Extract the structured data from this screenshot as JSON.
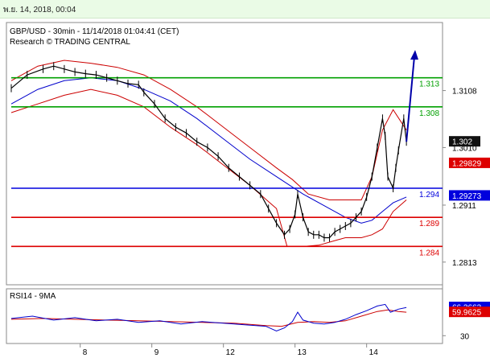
{
  "header": {
    "timestamp": "พ.ย. 14, 2018, 00:04"
  },
  "chart_data": {
    "type": "line",
    "title": "GBP/USD - 30min - 11/14/2018 01:04:41 (CET)",
    "subtitle": "Research © TRADING CENTRAL",
    "x_ticks": [
      "8",
      "9",
      "12",
      "13",
      "14"
    ],
    "y_ticks": [
      "1.3108",
      "1.3010",
      "1.2911",
      "1.2813"
    ],
    "ylim": [
      1.2774,
      1.3225
    ],
    "price_series": [
      [
        0,
        1.3112
      ],
      [
        3,
        1.3135
      ],
      [
        6,
        1.3145
      ],
      [
        8,
        1.315
      ],
      [
        10,
        1.3145
      ],
      [
        12,
        1.314
      ],
      [
        14,
        1.3137
      ],
      [
        16,
        1.3135
      ],
      [
        18,
        1.313
      ],
      [
        20,
        1.3125
      ],
      [
        22,
        1.312
      ],
      [
        24,
        1.3118
      ],
      [
        25,
        1.3105
      ],
      [
        27,
        1.3085
      ],
      [
        29,
        1.306
      ],
      [
        31,
        1.3045
      ],
      [
        33,
        1.3035
      ],
      [
        35,
        1.302
      ],
      [
        37,
        1.301
      ],
      [
        39,
        1.2995
      ],
      [
        41,
        1.2975
      ],
      [
        43,
        1.296
      ],
      [
        45,
        1.2945
      ],
      [
        47,
        1.293
      ],
      [
        48.5,
        1.2905
      ],
      [
        50,
        1.288
      ],
      [
        51.5,
        1.286
      ],
      [
        52.5,
        1.287
      ],
      [
        53.5,
        1.2895
      ],
      [
        54,
        1.293
      ],
      [
        55,
        1.289
      ],
      [
        56,
        1.2865
      ],
      [
        57,
        1.286
      ],
      [
        58,
        1.286
      ],
      [
        59,
        1.2855
      ],
      [
        60,
        1.2855
      ],
      [
        61,
        1.2865
      ],
      [
        62,
        1.287
      ],
      [
        63,
        1.2875
      ],
      [
        64,
        1.288
      ],
      [
        65,
        1.289
      ],
      [
        66,
        1.29
      ],
      [
        67,
        1.2925
      ],
      [
        68,
        1.296
      ],
      [
        69,
        1.301
      ],
      [
        70,
        1.306
      ],
      [
        70.5,
        1.303
      ],
      [
        71,
        1.296
      ],
      [
        72,
        1.294
      ],
      [
        72.5,
        1.2975
      ],
      [
        73,
        1.3005
      ],
      [
        74,
        1.306
      ],
      [
        74.5,
        1.302
      ]
    ],
    "projection": [
      [
        74.5,
        1.302
      ],
      [
        76,
        1.3175
      ]
    ],
    "moving_average": [
      [
        0,
        1.3085
      ],
      [
        5,
        1.311
      ],
      [
        10,
        1.3125
      ],
      [
        15,
        1.313
      ],
      [
        20,
        1.3125
      ],
      [
        25,
        1.311
      ],
      [
        30,
        1.309
      ],
      [
        35,
        1.306
      ],
      [
        40,
        1.3025
      ],
      [
        45,
        1.299
      ],
      [
        50,
        1.296
      ],
      [
        55,
        1.293
      ],
      [
        60,
        1.2905
      ],
      [
        63,
        1.289
      ],
      [
        66,
        1.288
      ],
      [
        68,
        1.2885
      ],
      [
        70,
        1.29
      ],
      [
        72,
        1.2915
      ],
      [
        74.5,
        1.2925
      ]
    ],
    "bollinger_upper": [
      [
        0,
        1.3125
      ],
      [
        5,
        1.315
      ],
      [
        10,
        1.316
      ],
      [
        15,
        1.3155
      ],
      [
        20,
        1.3148
      ],
      [
        25,
        1.3135
      ],
      [
        30,
        1.311
      ],
      [
        35,
        1.308
      ],
      [
        40,
        1.3045
      ],
      [
        45,
        1.301
      ],
      [
        50,
        1.2975
      ],
      [
        53,
        1.2955
      ],
      [
        56,
        1.293
      ],
      [
        60,
        1.292
      ],
      [
        63,
        1.292
      ],
      [
        66,
        1.292
      ],
      [
        68,
        1.296
      ],
      [
        70,
        1.304
      ],
      [
        72,
        1.3075
      ],
      [
        74.5,
        1.304
      ]
    ],
    "bollinger_lower": [
      [
        0,
        1.307
      ],
      [
        5,
        1.3085
      ],
      [
        10,
        1.31
      ],
      [
        15,
        1.311
      ],
      [
        20,
        1.31
      ],
      [
        25,
        1.308
      ],
      [
        30,
        1.3045
      ],
      [
        35,
        1.3015
      ],
      [
        40,
        1.298
      ],
      [
        45,
        1.2945
      ],
      [
        50,
        1.2905
      ],
      [
        52,
        1.284
      ],
      [
        55,
        1.284
      ],
      [
        58,
        1.2842
      ],
      [
        61,
        1.285
      ],
      [
        63,
        1.2855
      ],
      [
        66,
        1.2855
      ],
      [
        68,
        1.286
      ],
      [
        70,
        1.287
      ],
      [
        72,
        1.29
      ],
      [
        74.5,
        1.292
      ]
    ],
    "levels": [
      {
        "label": "1.313",
        "value": 1.313,
        "color": "#00a000"
      },
      {
        "label": "1.308",
        "value": 1.308,
        "color": "#00a000"
      },
      {
        "label": "1.294",
        "value": 1.294,
        "color": "#0000dd"
      },
      {
        "label": "1.289",
        "value": 1.289,
        "color": "#dd0000"
      },
      {
        "label": "1.284",
        "value": 1.284,
        "color": "#dd0000"
      }
    ],
    "price_tags": [
      {
        "label": "1.302",
        "value": 1.302,
        "bg": "#111111",
        "fg": "#ffffff"
      },
      {
        "label": "1.29829",
        "value": 1.2983,
        "bg": "#dd0000",
        "fg": "#ffffff"
      },
      {
        "label": "1.29273",
        "value": 1.2927,
        "bg": "#0000dd",
        "fg": "#ffffff"
      }
    ],
    "rsi": {
      "title": "RSI14 - 9MA",
      "ylim": [
        20,
        90
      ],
      "y_ticks": [
        "30"
      ],
      "rsi_series": [
        [
          0,
          52
        ],
        [
          4,
          55
        ],
        [
          8,
          50
        ],
        [
          12,
          53
        ],
        [
          16,
          49
        ],
        [
          20,
          51
        ],
        [
          24,
          47
        ],
        [
          28,
          49
        ],
        [
          32,
          45
        ],
        [
          36,
          48
        ],
        [
          40,
          46
        ],
        [
          44,
          44
        ],
        [
          48,
          42
        ],
        [
          50,
          36
        ],
        [
          51.5,
          40
        ],
        [
          53,
          48
        ],
        [
          54,
          60
        ],
        [
          55,
          50
        ],
        [
          57,
          46
        ],
        [
          59,
          45
        ],
        [
          61,
          47
        ],
        [
          63,
          51
        ],
        [
          65,
          57
        ],
        [
          67,
          62
        ],
        [
          69,
          68
        ],
        [
          70.5,
          70
        ],
        [
          71.5,
          60
        ],
        [
          73,
          64
        ],
        [
          74.5,
          66
        ]
      ],
      "ma_series": [
        [
          0,
          51
        ],
        [
          6,
          52
        ],
        [
          12,
          51
        ],
        [
          18,
          50
        ],
        [
          24,
          49
        ],
        [
          30,
          48
        ],
        [
          36,
          47
        ],
        [
          42,
          46
        ],
        [
          48,
          43
        ],
        [
          51,
          42
        ],
        [
          54,
          47
        ],
        [
          57,
          48
        ],
        [
          60,
          47
        ],
        [
          63,
          49
        ],
        [
          66,
          55
        ],
        [
          69,
          61
        ],
        [
          71,
          63
        ],
        [
          73,
          61
        ],
        [
          74.5,
          60
        ]
      ],
      "tags": [
        {
          "label": "66.2663",
          "value": 66.27,
          "bg": "#0000dd",
          "fg": "#ffffff"
        },
        {
          "label": "59.9625",
          "value": 59.96,
          "bg": "#dd0000",
          "fg": "#ffffff"
        }
      ]
    },
    "colors": {
      "price": "#000000",
      "moving_average": "#0000cc",
      "bollinger": "#cc0000",
      "projection": "#0000aa"
    },
    "grid": false
  }
}
